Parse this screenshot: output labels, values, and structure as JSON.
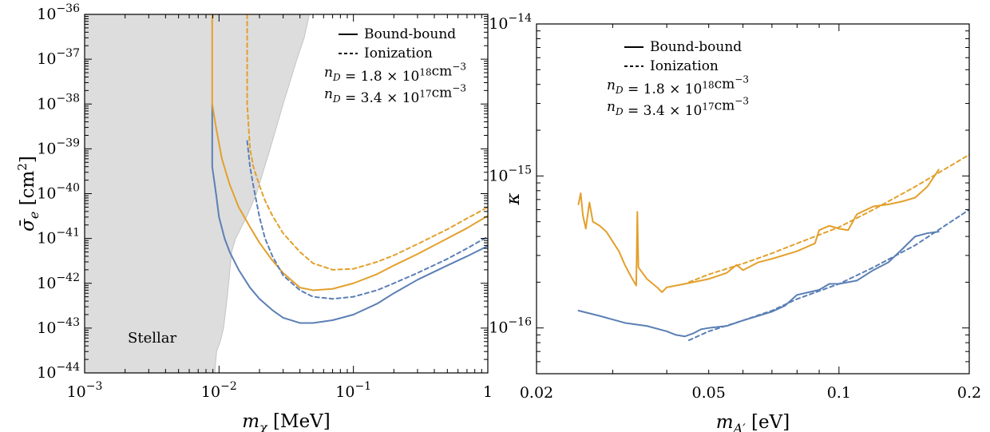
{
  "chart_data": [
    {
      "type": "line",
      "xlabel": "m_χ [MeV]",
      "ylabel": "σ̄_e [cm²]",
      "xscale": "log",
      "yscale": "log",
      "xlim": [
        0.001,
        1
      ],
      "ylim": [
        1e-44,
        1e-36
      ],
      "xticks": [
        {
          "value": 0.001,
          "base": "10",
          "exp": "−3"
        },
        {
          "value": 0.01,
          "base": "10",
          "exp": "−2"
        },
        {
          "value": 0.1,
          "base": "10",
          "exp": "−1"
        },
        {
          "value": 1,
          "label": "1"
        }
      ],
      "yticks": [
        {
          "value": 1e-44,
          "base": "10",
          "exp": "−44"
        },
        {
          "value": 1e-43,
          "base": "10",
          "exp": "−43"
        },
        {
          "value": 1e-42,
          "base": "10",
          "exp": "−42"
        },
        {
          "value": 1e-41,
          "base": "10",
          "exp": "−41"
        },
        {
          "value": 1e-40,
          "base": "10",
          "exp": "−40"
        },
        {
          "value": 1e-39,
          "base": "10",
          "exp": "−39"
        },
        {
          "value": 1e-38,
          "base": "10",
          "exp": "−38"
        },
        {
          "value": 1e-37,
          "base": "10",
          "exp": "−37"
        },
        {
          "value": 1e-36,
          "base": "10",
          "exp": "−36"
        }
      ],
      "legend": {
        "placement": "top-right",
        "style_entries": [
          {
            "label": "Bound-bound",
            "dash": "solid"
          },
          {
            "label": "Ionization",
            "dash": "dashed"
          }
        ],
        "color_entries": [
          {
            "label": "n_D = 1.8 × 10¹⁸cm⁻³",
            "color": "#5b7fb5"
          },
          {
            "label": "n_D = 3.4 × 10¹⁷cm⁻³",
            "color": "#e3a02c"
          }
        ]
      },
      "annotations": [
        {
          "text": "Stellar"
        }
      ],
      "region": {
        "name": "Stellar",
        "color": "#dddddd",
        "boundary": [
          [
            0.0093,
            1e-44
          ],
          [
            0.0096,
            3e-44
          ],
          [
            0.0103,
            5.5e-44
          ],
          [
            0.0108,
            1e-43
          ],
          [
            0.0113,
            3e-43
          ],
          [
            0.0118,
            1e-42
          ],
          [
            0.0124,
            5e-42
          ],
          [
            0.0133,
            1e-41
          ],
          [
            0.016,
            3e-41
          ],
          [
            0.019,
            1e-40
          ],
          [
            0.024,
            1e-39
          ],
          [
            0.03,
            1e-38
          ],
          [
            0.038,
            1e-37
          ],
          [
            0.043,
            3e-37
          ],
          [
            0.047,
            1e-36
          ]
        ]
      },
      "series": [
        {
          "style": "solid",
          "color": "#5b7fb5",
          "points": [
            [
              0.0089,
              1e-38
            ],
            [
              0.0089,
              4e-40
            ],
            [
              0.0095,
              1e-40
            ],
            [
              0.01,
              3e-41
            ],
            [
              0.011,
              1e-41
            ],
            [
              0.012,
              5e-42
            ],
            [
              0.014,
              2e-42
            ],
            [
              0.017,
              8e-43
            ],
            [
              0.02,
              4.5e-43
            ],
            [
              0.025,
              2.5e-43
            ],
            [
              0.03,
              1.7e-43
            ],
            [
              0.04,
              1.3e-43
            ],
            [
              0.05,
              1.3e-43
            ],
            [
              0.07,
              1.5e-43
            ],
            [
              0.1,
              2e-43
            ],
            [
              0.15,
              3.5e-43
            ],
            [
              0.2,
              6e-43
            ],
            [
              0.3,
              1.2e-42
            ],
            [
              0.5,
              2.5e-42
            ],
            [
              0.7,
              4e-42
            ],
            [
              1,
              6.8e-42
            ]
          ]
        },
        {
          "style": "solid",
          "color": "#e3a02c",
          "points": [
            [
              0.0089,
              1e-36
            ],
            [
              0.0089,
              1e-38
            ],
            [
              0.0095,
              3e-39
            ],
            [
              0.0105,
              6e-40
            ],
            [
              0.012,
              1.6e-40
            ],
            [
              0.014,
              5e-41
            ],
            [
              0.017,
              1.8e-41
            ],
            [
              0.02,
              8e-42
            ],
            [
              0.025,
              3.2e-42
            ],
            [
              0.03,
              1.7e-42
            ],
            [
              0.04,
              8e-43
            ],
            [
              0.05,
              7e-43
            ],
            [
              0.07,
              7.5e-43
            ],
            [
              0.1,
              1e-42
            ],
            [
              0.15,
              1.6e-42
            ],
            [
              0.2,
              2.5e-42
            ],
            [
              0.3,
              4.5e-42
            ],
            [
              0.5,
              1e-41
            ],
            [
              0.7,
              1.7e-41
            ],
            [
              1,
              3.2e-41
            ]
          ]
        },
        {
          "style": "dashed",
          "color": "#5b7fb5",
          "points": [
            [
              0.0162,
              1.5e-39
            ],
            [
              0.017,
              4e-40
            ],
            [
              0.018,
              1.5e-40
            ],
            [
              0.02,
              3e-41
            ],
            [
              0.022,
              1e-41
            ],
            [
              0.025,
              4e-42
            ],
            [
              0.03,
              1.5e-42
            ],
            [
              0.04,
              7e-43
            ],
            [
              0.05,
              5e-43
            ],
            [
              0.07,
              4.5e-43
            ],
            [
              0.1,
              5e-43
            ],
            [
              0.15,
              7e-43
            ],
            [
              0.2,
              1e-42
            ],
            [
              0.3,
              1.7e-42
            ],
            [
              0.5,
              3.5e-42
            ],
            [
              0.7,
              6e-42
            ],
            [
              1,
              1.1e-41
            ]
          ]
        },
        {
          "style": "dashed",
          "color": "#e3a02c",
          "points": [
            [
              0.0162,
              1e-36
            ],
            [
              0.0162,
              1e-38
            ],
            [
              0.017,
              1e-39
            ],
            [
              0.018,
              4e-40
            ],
            [
              0.02,
              1.5e-40
            ],
            [
              0.022,
              7e-41
            ],
            [
              0.025,
              3.2e-41
            ],
            [
              0.03,
              1.3e-41
            ],
            [
              0.04,
              5e-42
            ],
            [
              0.05,
              2.8e-42
            ],
            [
              0.07,
              2e-42
            ],
            [
              0.1,
              2.1e-42
            ],
            [
              0.15,
              3e-42
            ],
            [
              0.2,
              4.2e-42
            ],
            [
              0.3,
              7.5e-42
            ],
            [
              0.5,
              1.6e-41
            ],
            [
              0.7,
              2.8e-41
            ],
            [
              1,
              5e-41
            ]
          ]
        }
      ]
    },
    {
      "type": "line",
      "xlabel": "m_A′ [eV]",
      "ylabel": "κ",
      "xscale": "log",
      "yscale": "log",
      "xlim": [
        0.02,
        0.2
      ],
      "ylim": [
        5e-17,
        1e-14
      ],
      "xticks": [
        {
          "value": 0.02,
          "label": "0.02"
        },
        {
          "value": 0.05,
          "label": "0.05"
        },
        {
          "value": 0.1,
          "label": "0.1"
        },
        {
          "value": 0.2,
          "label": "0.2"
        }
      ],
      "yticks": [
        {
          "value": 1e-16,
          "base": "10",
          "exp": "−16"
        },
        {
          "value": 1e-15,
          "base": "10",
          "exp": "−15"
        },
        {
          "value": 1e-14,
          "base": "10",
          "exp": "−14"
        }
      ],
      "legend": {
        "placement": "top-left",
        "style_entries": [
          {
            "label": "Bound-bound",
            "dash": "solid"
          },
          {
            "label": "Ionization",
            "dash": "dashed"
          }
        ],
        "color_entries": [
          {
            "label": "n_D = 1.8 × 10¹⁸cm⁻³",
            "color": "#5b7fb5"
          },
          {
            "label": "n_D = 3.4 × 10¹⁷cm⁻³",
            "color": "#e3a02c"
          }
        ]
      },
      "series": [
        {
          "style": "solid",
          "color": "#5b7fb5",
          "points": [
            [
              0.025,
              1.3e-16
            ],
            [
              0.028,
              1.2e-16
            ],
            [
              0.032,
              1.08e-16
            ],
            [
              0.036,
              1.03e-16
            ],
            [
              0.04,
              9.5e-17
            ],
            [
              0.042,
              9e-17
            ],
            [
              0.044,
              8.8e-17
            ],
            [
              0.046,
              9.2e-17
            ],
            [
              0.048,
              9.8e-17
            ],
            [
              0.05,
              1e-16
            ],
            [
              0.055,
              1.03e-16
            ],
            [
              0.06,
              1.12e-16
            ],
            [
              0.065,
              1.2e-16
            ],
            [
              0.07,
              1.28e-16
            ],
            [
              0.075,
              1.4e-16
            ],
            [
              0.08,
              1.65e-16
            ],
            [
              0.09,
              1.78e-16
            ],
            [
              0.095,
              1.95e-16
            ],
            [
              0.1,
              1.95e-16
            ],
            [
              0.11,
              2.05e-16
            ],
            [
              0.12,
              2.4e-16
            ],
            [
              0.13,
              2.7e-16
            ],
            [
              0.14,
              3.3e-16
            ],
            [
              0.15,
              4e-16
            ],
            [
              0.16,
              4.2e-16
            ],
            [
              0.17,
              4.3e-16
            ]
          ]
        },
        {
          "style": "solid",
          "color": "#e3a02c",
          "points": [
            [
              0.025,
              6.5e-16
            ],
            [
              0.0253,
              7.7e-16
            ],
            [
              0.0256,
              5.5e-16
            ],
            [
              0.026,
              4.5e-16
            ],
            [
              0.0265,
              6.7e-16
            ],
            [
              0.027,
              5e-16
            ],
            [
              0.028,
              4.7e-16
            ],
            [
              0.029,
              4.3e-16
            ],
            [
              0.03,
              3.7e-16
            ],
            [
              0.031,
              3.2e-16
            ],
            [
              0.032,
              2.6e-16
            ],
            [
              0.033,
              2.2e-16
            ],
            [
              0.034,
              1.9e-16
            ],
            [
              0.0342,
              5.8e-16
            ],
            [
              0.0344,
              2.5e-16
            ],
            [
              0.036,
              2.1e-16
            ],
            [
              0.038,
              1.85e-16
            ],
            [
              0.039,
              1.72e-16
            ],
            [
              0.04,
              1.85e-16
            ],
            [
              0.042,
              1.9e-16
            ],
            [
              0.044,
              1.95e-16
            ],
            [
              0.046,
              2e-16
            ],
            [
              0.048,
              2.05e-16
            ],
            [
              0.05,
              2.1e-16
            ],
            [
              0.055,
              2.3e-16
            ],
            [
              0.058,
              2.6e-16
            ],
            [
              0.06,
              2.4e-16
            ],
            [
              0.065,
              2.7e-16
            ],
            [
              0.07,
              2.85e-16
            ],
            [
              0.08,
              3.2e-16
            ],
            [
              0.088,
              3.6e-16
            ],
            [
              0.09,
              4.4e-16
            ],
            [
              0.095,
              4.7e-16
            ],
            [
              0.1,
              4.5e-16
            ],
            [
              0.105,
              4.4e-16
            ],
            [
              0.11,
              5.6e-16
            ],
            [
              0.12,
              6.3e-16
            ],
            [
              0.13,
              6.5e-16
            ],
            [
              0.14,
              6.8e-16
            ],
            [
              0.15,
              7.2e-16
            ],
            [
              0.16,
              8.5e-16
            ],
            [
              0.17,
              1.1e-15
            ]
          ]
        },
        {
          "style": "dashed",
          "color": "#5b7fb5",
          "points": [
            [
              0.045,
              8.3e-17
            ],
            [
              0.05,
              9.5e-17
            ],
            [
              0.06,
              1.12e-16
            ],
            [
              0.07,
              1.3e-16
            ],
            [
              0.08,
              1.55e-16
            ],
            [
              0.1,
              1.95e-16
            ],
            [
              0.12,
              2.5e-16
            ],
            [
              0.15,
              3.5e-16
            ],
            [
              0.2,
              6e-16
            ]
          ]
        },
        {
          "style": "dashed",
          "color": "#e3a02c",
          "points": [
            [
              0.045,
              2e-16
            ],
            [
              0.05,
              2.25e-16
            ],
            [
              0.06,
              2.65e-16
            ],
            [
              0.07,
              3.1e-16
            ],
            [
              0.08,
              3.6e-16
            ],
            [
              0.1,
              4.6e-16
            ],
            [
              0.12,
              6e-16
            ],
            [
              0.15,
              8.5e-16
            ],
            [
              0.2,
              1.38e-15
            ]
          ]
        }
      ]
    }
  ]
}
